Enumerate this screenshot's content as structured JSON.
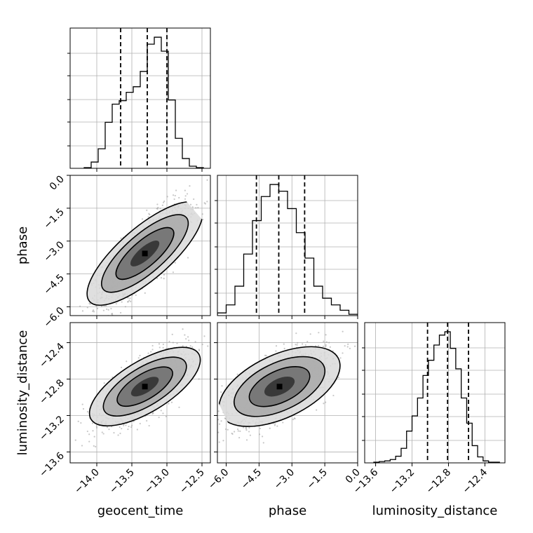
{
  "chart_data": {
    "type": "corner",
    "parameters": [
      "geocent_time",
      "phase",
      "luminosity_distance"
    ],
    "ranges": {
      "geocent_time": [
        -14.38,
        -12.38
      ],
      "phase": [
        -6.4,
        0.0
      ],
      "luminosity_distance": [
        -13.72,
        -12.18
      ]
    },
    "ticks": {
      "geocent_time": [
        -14.0,
        -13.5,
        -13.0,
        -12.5
      ],
      "phase": [
        -6.0,
        -4.5,
        -3.0,
        -1.5,
        0.0
      ],
      "luminosity_distance": [
        -13.6,
        -13.2,
        -12.8,
        -12.4
      ]
    },
    "tick_labels": {
      "geocent_time": [
        "−14.0",
        "−13.5",
        "−13.0",
        "−12.5"
      ],
      "phase": [
        "−6.0",
        "−4.5",
        "−3.0",
        "−1.5",
        "0.0"
      ],
      "luminosity_distance": [
        "−13.6",
        "−13.2",
        "−12.8",
        "−12.4"
      ]
    },
    "quantiles": {
      "geocent_time": [
        -13.66,
        -13.28,
        -13.0
      ],
      "phase": [
        -4.62,
        -3.6,
        -2.42
      ],
      "luminosity_distance": [
        -13.03,
        -12.81,
        -12.58
      ]
    },
    "histograms": {
      "geocent_time": {
        "edges": [
          -14.18,
          -14.08,
          -13.98,
          -13.88,
          -13.78,
          -13.68,
          -13.58,
          -13.48,
          -13.38,
          -13.28,
          -13.18,
          -13.08,
          -12.98,
          -12.88,
          -12.78,
          -12.68,
          -12.58,
          -12.48
        ],
        "counts": [
          1,
          9,
          28,
          66,
          92,
          97,
          109,
          117,
          139,
          178,
          188,
          168,
          98,
          43,
          14,
          3,
          1
        ]
      },
      "phase": {
        "edges": [
          -6.4,
          -6.0,
          -5.6,
          -5.2,
          -4.8,
          -4.4,
          -4.0,
          -3.6,
          -3.2,
          -2.8,
          -2.4,
          -2.0,
          -1.6,
          -1.2,
          -0.8,
          -0.4,
          0.0
        ],
        "counts": [
          2,
          8,
          22,
          46,
          71,
          89,
          98,
          93,
          80,
          62,
          43,
          22,
          13,
          8,
          4,
          1
        ]
      },
      "luminosity_distance": {
        "edges": [
          -13.62,
          -13.56,
          -13.5,
          -13.44,
          -13.38,
          -13.32,
          -13.26,
          -13.2,
          -13.14,
          -13.08,
          -13.02,
          -12.96,
          -12.9,
          -12.84,
          -12.78,
          -12.72,
          -12.66,
          -12.6,
          -12.54,
          -12.48,
          -12.42,
          -12.36,
          -12.3,
          -12.24
        ],
        "counts": [
          1,
          2,
          3,
          5,
          10,
          22,
          48,
          71,
          98,
          132,
          155,
          178,
          193,
          198,
          173,
          142,
          98,
          60,
          26,
          9,
          3,
          1,
          1
        ]
      }
    },
    "correlations": {
      "phase|geocent_time": 0.78,
      "luminosity_distance|geocent_time": 0.72,
      "luminosity_distance|phase": 0.62
    },
    "contour_levels": [
      0.5,
      1.0,
      1.5,
      2.0
    ],
    "grid": true,
    "colors": {
      "line": "#000000",
      "points": "#9a9a9a",
      "grid": "#b0b0b0"
    }
  }
}
